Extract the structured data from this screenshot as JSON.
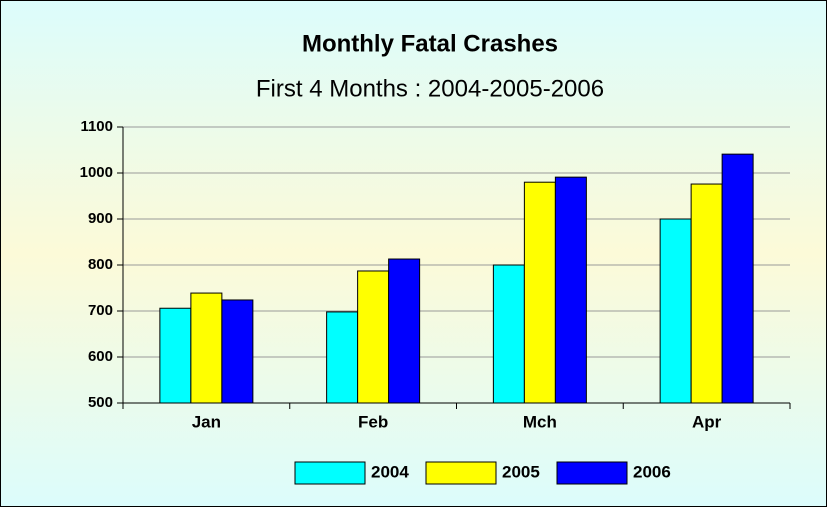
{
  "chart_data": {
    "type": "bar",
    "title": "Monthly Fatal Crashes",
    "subtitle": "First 4 Months : 2004-2005-2006",
    "categories": [
      "Jan",
      "Feb",
      "Mch",
      "Apr"
    ],
    "series": [
      {
        "name": "2004",
        "color": "#00ffff",
        "values": [
          706,
          698,
          800,
          900
        ]
      },
      {
        "name": "2005",
        "color": "#ffff00",
        "values": [
          739,
          787,
          980,
          976
        ]
      },
      {
        "name": "2006",
        "color": "#0000ff",
        "values": [
          724,
          813,
          991,
          1041
        ]
      }
    ],
    "ylim": [
      500,
      1100
    ],
    "yticks": [
      500,
      600,
      700,
      800,
      900,
      1000,
      1100
    ],
    "grid": true,
    "legend": "bottom"
  }
}
